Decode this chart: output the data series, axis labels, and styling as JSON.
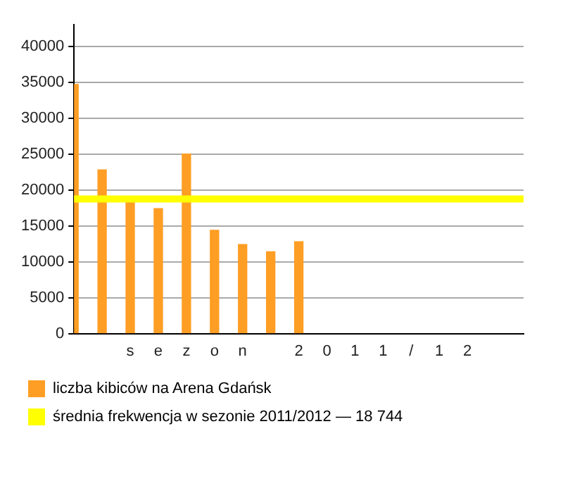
{
  "chart_data": {
    "type": "bar",
    "categories": [
      null,
      null,
      "s",
      "e",
      "z",
      "o",
      "n",
      null,
      "2",
      "0",
      "1",
      "1",
      "/",
      "1",
      "2",
      null,
      null
    ],
    "series": [
      {
        "name": "liczba kibiców na Arena Gdańsk",
        "color": "#ff9e24",
        "values": [
          34700,
          22800,
          18700,
          17400,
          25000,
          14400,
          12400,
          11400,
          12800,
          null,
          null,
          null,
          null,
          null,
          null,
          null,
          null
        ]
      }
    ],
    "ylim": [
      0,
      43000
    ],
    "yticks": [
      0,
      5000,
      10000,
      15000,
      20000,
      25000,
      30000,
      35000,
      40000
    ],
    "grid": "y",
    "legend": "bottom",
    "ref_lines": [
      {
        "axis": "y",
        "value": 18744,
        "label": "średnia frekwencja w sezonie 2011/2012 — 18 744",
        "color": "#ffff00"
      }
    ]
  }
}
